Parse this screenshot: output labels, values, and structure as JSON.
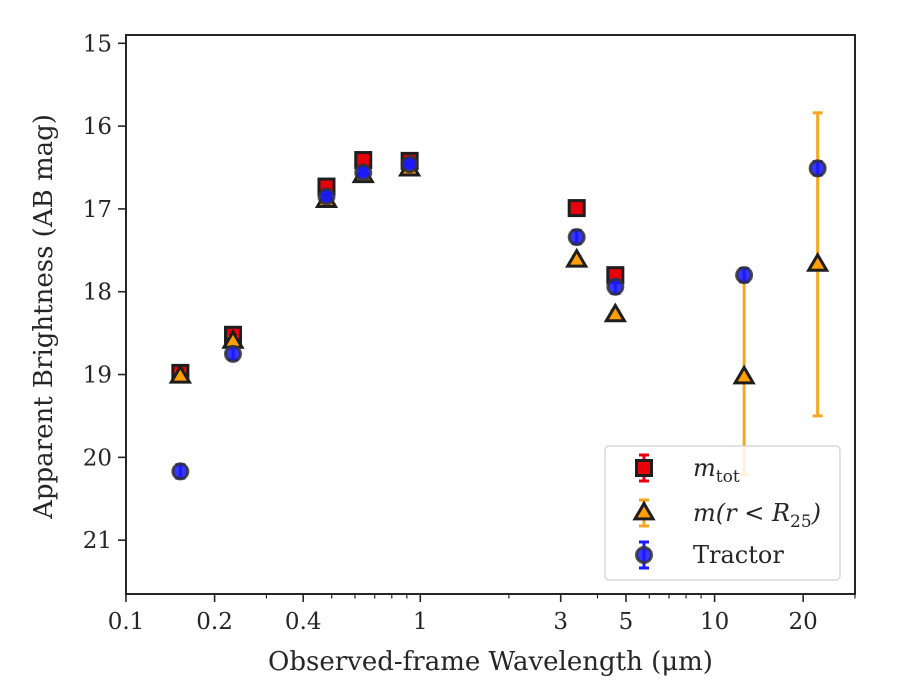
{
  "chart_data": {
    "type": "scatter",
    "xlabel": "Observed-frame Wavelength (μm)",
    "ylabel": "Apparent Brightness (AB mag)",
    "x_scale": "log",
    "y_inverted": true,
    "xlim": [
      0.1,
      30
    ],
    "ylim": [
      21.65,
      14.9
    ],
    "xticks": [
      {
        "value": 0.1,
        "label": "0.1"
      },
      {
        "value": 0.2,
        "label": "0.2"
      },
      {
        "value": 0.4,
        "label": "0.4"
      },
      {
        "value": 1,
        "label": "1"
      },
      {
        "value": 3,
        "label": "3"
      },
      {
        "value": 5,
        "label": "5"
      },
      {
        "value": 10,
        "label": "10"
      },
      {
        "value": 20,
        "label": "20"
      }
    ],
    "yticks": [
      15,
      16,
      17,
      18,
      19,
      20,
      21
    ],
    "grid": false,
    "legend_position": "lower-right",
    "series": [
      {
        "name": "m_tot",
        "marker": "square",
        "color": "#e8000b",
        "errcolor": "#e8000b",
        "points": [
          {
            "x": 0.153,
            "y": 18.98,
            "err": 0.05
          },
          {
            "x": 0.231,
            "y": 18.52,
            "err": 0.05
          },
          {
            "x": 0.48,
            "y": 16.73,
            "err": 0.03
          },
          {
            "x": 0.64,
            "y": 16.41,
            "err": 0.03
          },
          {
            "x": 0.92,
            "y": 16.42,
            "err": 0.03
          },
          {
            "x": 3.4,
            "y": 16.99,
            "err": 0.05
          },
          {
            "x": 4.6,
            "y": 17.8,
            "err": 0.05
          }
        ]
      },
      {
        "name": "m(r < R25)",
        "marker": "triangle",
        "color": "#ff9f00",
        "errcolor": "#f5a623",
        "points": [
          {
            "x": 0.153,
            "y": 19.02,
            "err": 0.05
          },
          {
            "x": 0.231,
            "y": 18.6,
            "err": 0.05
          },
          {
            "x": 0.48,
            "y": 16.9,
            "err": 0.03
          },
          {
            "x": 0.64,
            "y": 16.6,
            "err": 0.03
          },
          {
            "x": 0.92,
            "y": 16.52,
            "err": 0.03
          },
          {
            "x": 3.4,
            "y": 17.62,
            "err": 0.05
          },
          {
            "x": 4.6,
            "y": 18.28,
            "err": 0.05
          },
          {
            "x": 12.6,
            "y": 19.03,
            "err": 1.18
          },
          {
            "x": 22.4,
            "y": 17.67,
            "err": 1.83
          }
        ]
      },
      {
        "name": "Tractor",
        "marker": "circle",
        "color": "#1a1aff",
        "errcolor": "#1a1aff",
        "points": [
          {
            "x": 0.153,
            "y": 20.17,
            "err": 0.08
          },
          {
            "x": 0.231,
            "y": 18.75,
            "err": 0.07
          },
          {
            "x": 0.48,
            "y": 16.85,
            "err": 0.05
          },
          {
            "x": 0.64,
            "y": 16.56,
            "err": 0.04
          },
          {
            "x": 0.92,
            "y": 16.46,
            "err": 0.04
          },
          {
            "x": 3.4,
            "y": 17.34,
            "err": 0.08
          },
          {
            "x": 4.6,
            "y": 17.94,
            "err": 0.08
          },
          {
            "x": 12.6,
            "y": 17.8,
            "err": 0.08
          },
          {
            "x": 22.4,
            "y": 16.51,
            "err": 0.08
          }
        ]
      }
    ],
    "legend": [
      {
        "marker": "square",
        "color": "#e8000b",
        "label_main": "m",
        "label_sub": "tot",
        "label_rest": ""
      },
      {
        "marker": "triangle",
        "color": "#ff9f00",
        "label_main": "m(r < R",
        "label_sub": "25",
        "label_rest": ")"
      },
      {
        "marker": "circle",
        "color": "#1a1aff",
        "label_main": "Tractor",
        "label_sub": "",
        "label_rest": ""
      }
    ]
  }
}
